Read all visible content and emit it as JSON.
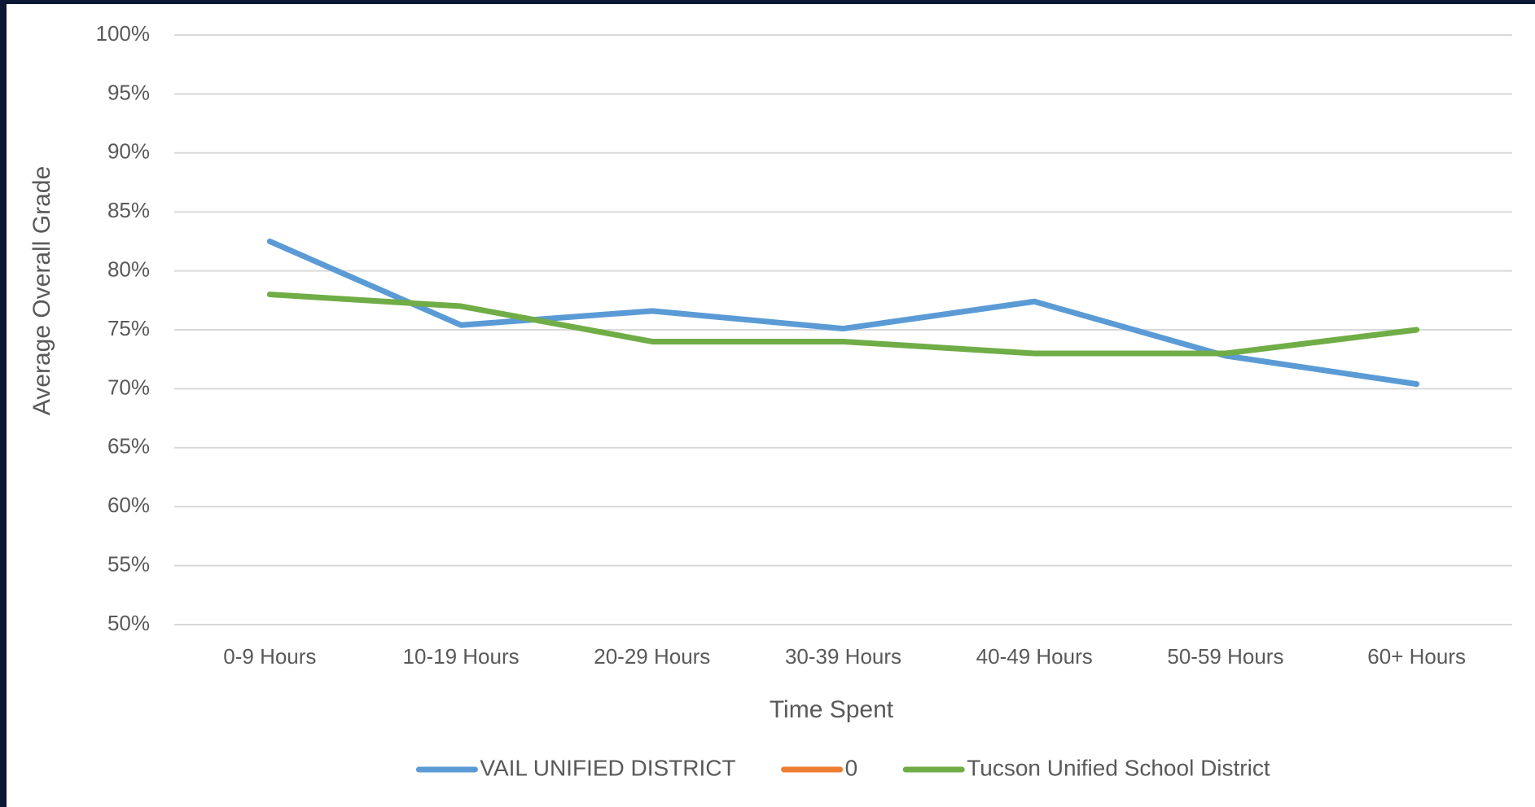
{
  "chart_data": {
    "type": "line",
    "x_label": "Time Spent",
    "y_label": "Average Overall Grade",
    "categories": [
      "0-9 Hours",
      "10-19 Hours",
      "20-29 Hours",
      "30-39 Hours",
      "40-49 Hours",
      "50-59 Hours",
      "60+ Hours"
    ],
    "series": [
      {
        "name": "VAIL UNIFIED DISTRICT",
        "color": "#5b9bd5",
        "values": [
          82.5,
          75.4,
          76.6,
          75.1,
          77.4,
          72.8,
          70.4
        ]
      },
      {
        "name": "0",
        "color": "#ed7d31",
        "values": [
          null,
          null,
          null,
          null,
          null,
          null,
          null
        ]
      },
      {
        "name": "Tucson Unified School District",
        "color": "#70ad47",
        "values": [
          78,
          77,
          74,
          74,
          73,
          73,
          75
        ]
      }
    ],
    "ylim": [
      50,
      100
    ],
    "yticks": [
      {
        "value": 50,
        "label": "50%"
      },
      {
        "value": 55,
        "label": "55%"
      },
      {
        "value": 60,
        "label": "60%"
      },
      {
        "value": 65,
        "label": "65%"
      },
      {
        "value": 70,
        "label": "70%"
      },
      {
        "value": 75,
        "label": "75%"
      },
      {
        "value": 80,
        "label": "80%"
      },
      {
        "value": 85,
        "label": "85%"
      },
      {
        "value": 90,
        "label": "90%"
      },
      {
        "value": 95,
        "label": "95%"
      },
      {
        "value": 100,
        "label": "100%"
      }
    ],
    "grid": true,
    "legend": "bottom"
  }
}
